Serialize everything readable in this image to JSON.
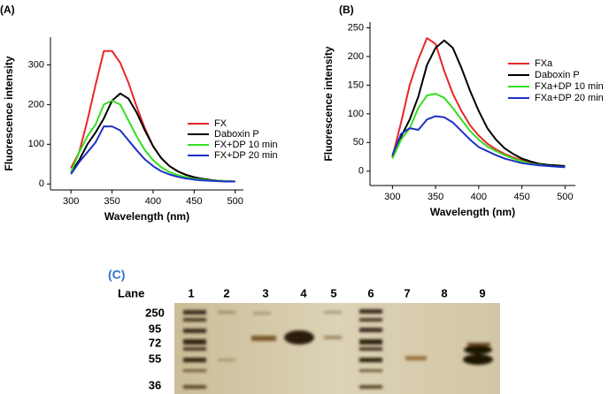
{
  "chart_data": [
    {
      "type": "line",
      "panel": "(A)",
      "x_label": "Wavelength (nm)",
      "y_label": "Fluorescence intensity",
      "x": [
        300,
        310,
        320,
        330,
        340,
        350,
        360,
        370,
        380,
        390,
        400,
        410,
        420,
        430,
        440,
        450,
        460,
        470,
        480,
        490,
        500
      ],
      "series": [
        {
          "name": "FX",
          "color": "#e8262a",
          "values": [
            40,
            80,
            160,
            250,
            335,
            335,
            305,
            255,
            195,
            140,
            95,
            65,
            45,
            32,
            23,
            17,
            13,
            10,
            8,
            7,
            6
          ]
        },
        {
          "name": "Daboxin P",
          "color": "#000000",
          "values": [
            28,
            60,
            100,
            130,
            165,
            210,
            228,
            215,
            180,
            135,
            95,
            65,
            45,
            32,
            23,
            17,
            13,
            10,
            8,
            7,
            6
          ]
        },
        {
          "name": "FX+DP 10 min",
          "color": "#33e01e",
          "values": [
            30,
            80,
            120,
            150,
            200,
            210,
            200,
            160,
            120,
            85,
            60,
            42,
            30,
            22,
            17,
            13,
            11,
            9,
            8,
            7,
            6
          ]
        },
        {
          "name": "FX+DP 20 min",
          "color": "#1f2fc8",
          "values": [
            25,
            55,
            80,
            105,
            145,
            145,
            135,
            110,
            85,
            62,
            45,
            32,
            24,
            18,
            14,
            11,
            9,
            8,
            7,
            6,
            6
          ]
        }
      ],
      "xlim": [
        275,
        510
      ],
      "xticks": [
        300,
        350,
        400,
        450,
        500
      ],
      "ylim": [
        -15,
        370
      ],
      "yticks": [
        0,
        100,
        200,
        300
      ]
    },
    {
      "type": "line",
      "panel": "(B)",
      "x_label": "Wavelength (nm)",
      "y_label": "Fluorescence intensity",
      "x": [
        300,
        310,
        320,
        330,
        340,
        350,
        360,
        370,
        380,
        390,
        400,
        410,
        420,
        430,
        440,
        450,
        460,
        470,
        480,
        490,
        500
      ],
      "series": [
        {
          "name": "FXa",
          "color": "#e8262a",
          "values": [
            25,
            85,
            150,
            195,
            232,
            222,
            175,
            135,
            105,
            80,
            62,
            48,
            38,
            30,
            24,
            19,
            15,
            12,
            10,
            9,
            8
          ]
        },
        {
          "name": "Daboxin P",
          "color": "#000000",
          "values": [
            25,
            60,
            90,
            130,
            185,
            215,
            228,
            215,
            180,
            140,
            105,
            75,
            55,
            40,
            30,
            22,
            17,
            13,
            11,
            10,
            9
          ]
        },
        {
          "name": "FXa+DP 10 min",
          "color": "#33e01e",
          "values": [
            22,
            55,
            75,
            110,
            132,
            135,
            128,
            110,
            90,
            70,
            55,
            43,
            35,
            28,
            22,
            17,
            13,
            11,
            9,
            8,
            7
          ]
        },
        {
          "name": "FXa+DP 20 min",
          "color": "#1f2fc8",
          "values": [
            28,
            65,
            75,
            72,
            90,
            96,
            94,
            85,
            70,
            55,
            42,
            35,
            28,
            22,
            18,
            14,
            12,
            10,
            9,
            8,
            7
          ]
        }
      ],
      "xlim": [
        274,
        512
      ],
      "xticks": [
        300,
        350,
        400,
        450,
        500
      ],
      "ylim": [
        -25,
        260
      ],
      "yticks": [
        0,
        50,
        100,
        150,
        200,
        250
      ]
    }
  ],
  "gel": {
    "panel": "(C)",
    "lane_title": "Lane",
    "lanes": [
      "1",
      "2",
      "3",
      "4",
      "5",
      "6",
      "7",
      "8",
      "9"
    ],
    "markers": [
      "250",
      "95",
      "72",
      "55",
      "36"
    ]
  }
}
